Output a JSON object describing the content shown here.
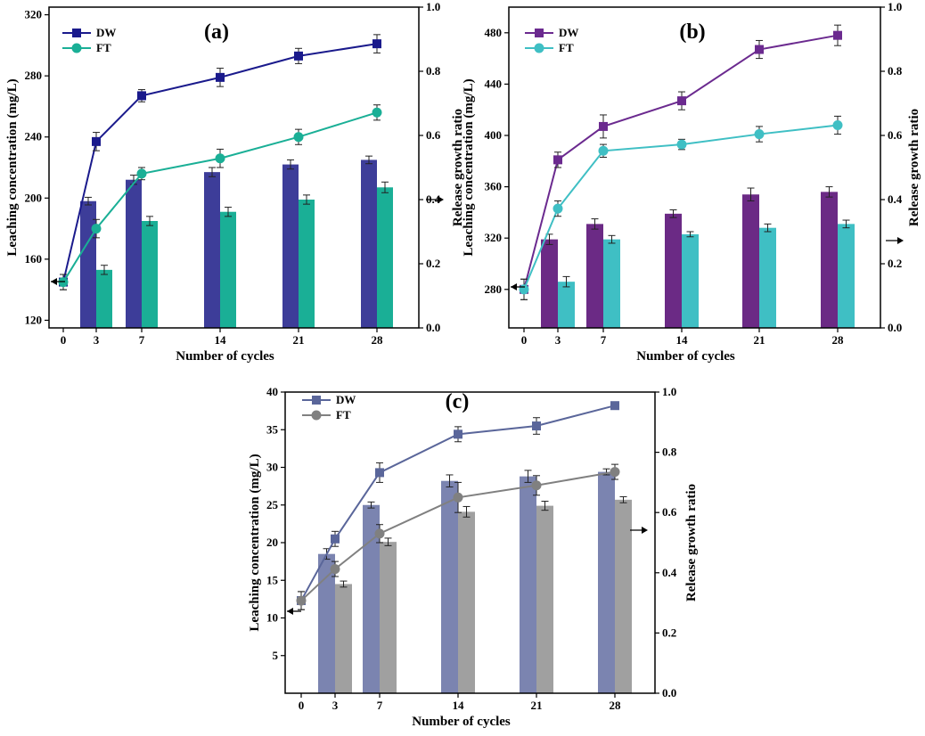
{
  "chart_data": [
    {
      "type": "bar+line",
      "panel_label": "(a)",
      "xlabel": "Number of cycles",
      "ylabel_left": "Leaching concentration (mg/L)",
      "ylabel_right": "Release growth ratio",
      "x_ticks": [
        "0",
        "3",
        "7",
        "14",
        "21",
        "28"
      ],
      "y_left_ticks": [
        "120",
        "160",
        "200",
        "240",
        "280",
        "320"
      ],
      "y_right_ticks": [
        "0.0",
        "0.2",
        "0.4",
        "0.6",
        "0.8",
        "1.0"
      ],
      "ylim_left": [
        115,
        325
      ],
      "ylim_right": [
        0,
        1
      ],
      "colors": {
        "dw_line": "#1a1a8c",
        "ft_line": "#1aaf96",
        "dw_bar": "#3d3d99",
        "ft_bar": "#1aaf96"
      },
      "legend": [
        "DW",
        "FT"
      ],
      "legend_position": "top-left",
      "bars": [
        {
          "name": "DW",
          "x": [
            3,
            7,
            14,
            21,
            28
          ],
          "values": [
            198,
            212,
            217,
            222,
            225
          ],
          "errors": [
            2.5,
            3,
            3,
            3,
            2.5
          ]
        },
        {
          "name": "FT",
          "x": [
            3,
            7,
            14,
            21,
            28
          ],
          "values": [
            153,
            185,
            191,
            199,
            207
          ],
          "errors": [
            3,
            3,
            3,
            3,
            3.5
          ]
        }
      ],
      "lines": [
        {
          "name": "DW",
          "marker": "square",
          "x": [
            0,
            3,
            7,
            14,
            21,
            28
          ],
          "values": [
            145,
            237,
            267,
            279,
            293,
            301
          ],
          "errors": [
            5,
            6,
            4,
            6,
            5,
            6
          ]
        },
        {
          "name": "FT",
          "marker": "circle",
          "x": [
            0,
            3,
            7,
            14,
            21,
            28
          ],
          "values": [
            145,
            180,
            216,
            226,
            240,
            256
          ],
          "errors": [
            5,
            6,
            4,
            6,
            5,
            5
          ]
        }
      ]
    },
    {
      "type": "bar+line",
      "panel_label": "(b)",
      "xlabel": "Number of cycles",
      "ylabel_left": "Leaching concentration (mg/L)",
      "ylabel_right": "Release growth ratio",
      "x_ticks": [
        "0",
        "3",
        "7",
        "14",
        "21",
        "28"
      ],
      "y_left_ticks": [
        "280",
        "320",
        "360",
        "400",
        "440",
        "480"
      ],
      "y_right_ticks": [
        "0.0",
        "0.2",
        "0.4",
        "0.6",
        "0.8",
        "1.0"
      ],
      "ylim_left": [
        250,
        500
      ],
      "ylim_right": [
        0,
        1
      ],
      "colors": {
        "dw_line": "#6b2a8f",
        "ft_line": "#3fbfc4",
        "dw_bar": "#6b2a85",
        "ft_bar": "#3fbfc4"
      },
      "legend": [
        "DW",
        "FT"
      ],
      "legend_position": "top-left",
      "bars": [
        {
          "name": "DW",
          "x": [
            3,
            7,
            14,
            21,
            28
          ],
          "values": [
            319,
            331,
            339,
            354,
            356
          ],
          "errors": [
            4,
            4,
            3,
            5,
            4
          ]
        },
        {
          "name": "FT",
          "x": [
            3,
            7,
            14,
            21,
            28
          ],
          "values": [
            286,
            319,
            323,
            328,
            331
          ],
          "errors": [
            4,
            3,
            2,
            3,
            3
          ]
        }
      ],
      "lines": [
        {
          "name": "DW",
          "marker": "square",
          "x": [
            0,
            3,
            7,
            14,
            21,
            28
          ],
          "values": [
            280,
            381,
            407,
            427,
            467,
            478
          ],
          "errors": [
            8,
            6,
            9,
            7,
            7,
            8
          ]
        },
        {
          "name": "FT",
          "marker": "circle",
          "x": [
            0,
            3,
            7,
            14,
            21,
            28
          ],
          "values": [
            280,
            343,
            388,
            393,
            401,
            408
          ],
          "errors": [
            8,
            6,
            5,
            4,
            6,
            7
          ]
        }
      ]
    },
    {
      "type": "bar+line",
      "panel_label": "(c)",
      "xlabel": "Number of cycles",
      "ylabel_left": "Leaching concentration (mg/L)",
      "ylabel_right": "Release growth ratio",
      "x_ticks": [
        "0",
        "3",
        "7",
        "14",
        "21",
        "28"
      ],
      "y_left_ticks": [
        "5",
        "10",
        "15",
        "20",
        "25",
        "30",
        "35",
        "40"
      ],
      "y_right_ticks": [
        "0.0",
        "0.2",
        "0.4",
        "0.6",
        "0.8",
        "1.0"
      ],
      "ylim_left": [
        0,
        40
      ],
      "ylim_right": [
        0,
        1
      ],
      "colors": {
        "dw_line": "#5a669a",
        "ft_line": "#808080",
        "dw_bar": "#7b84b0",
        "ft_bar": "#a0a0a0"
      },
      "legend": [
        "DW",
        "FT"
      ],
      "legend_position": "top-left",
      "bars": [
        {
          "name": "DW",
          "x": [
            3,
            7,
            14,
            21,
            28
          ],
          "values": [
            18.5,
            25,
            28.2,
            28.8,
            29.4
          ],
          "errors": [
            0.7,
            0.4,
            0.8,
            0.8,
            0.4
          ]
        },
        {
          "name": "FT",
          "x": [
            3,
            7,
            14,
            21,
            28
          ],
          "values": [
            14.5,
            20.1,
            24.1,
            24.9,
            25.7
          ],
          "errors": [
            0.4,
            0.5,
            0.7,
            0.6,
            0.4
          ]
        }
      ],
      "lines": [
        {
          "name": "DW",
          "marker": "square",
          "x": [
            0,
            3,
            7,
            14,
            21,
            28
          ],
          "values": [
            12.3,
            20.5,
            29.3,
            34.4,
            35.5,
            38.2
          ],
          "errors": [
            1.2,
            1.0,
            1.3,
            1.0,
            1.1,
            0.5
          ]
        },
        {
          "name": "FT",
          "marker": "circle",
          "x": [
            0,
            3,
            7,
            14,
            21,
            28
          ],
          "values": [
            12.3,
            16.5,
            21.2,
            26,
            27.6,
            29.4
          ],
          "errors": [
            1.2,
            1.0,
            1.2,
            2.0,
            1.3,
            1.0
          ]
        }
      ]
    }
  ]
}
